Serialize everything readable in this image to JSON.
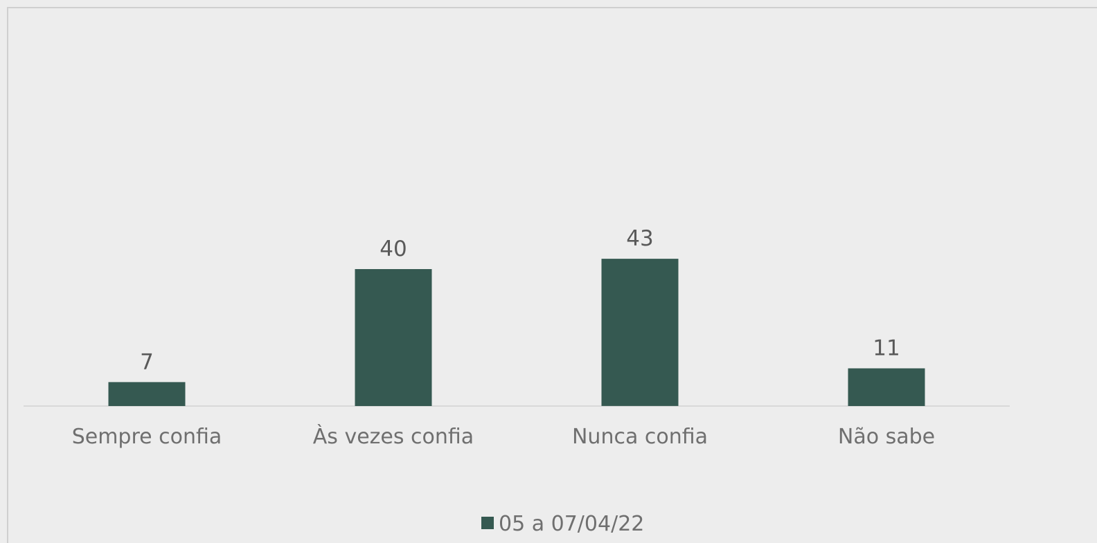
{
  "chart_data": {
    "type": "bar",
    "categories": [
      "Sempre confia",
      "Às vezes confia",
      "Nunca confia",
      "Não sabe"
    ],
    "series": [
      {
        "name": "05 a 07/04/22",
        "values": [
          7,
          40,
          43,
          11
        ],
        "color": "#355951"
      }
    ],
    "data_labels": [
      "7",
      "40",
      "43",
      "11"
    ],
    "ylim": [
      0,
      100
    ],
    "grid": false,
    "legend": "bottom-center",
    "title": "",
    "xlabel": "",
    "ylabel": ""
  }
}
